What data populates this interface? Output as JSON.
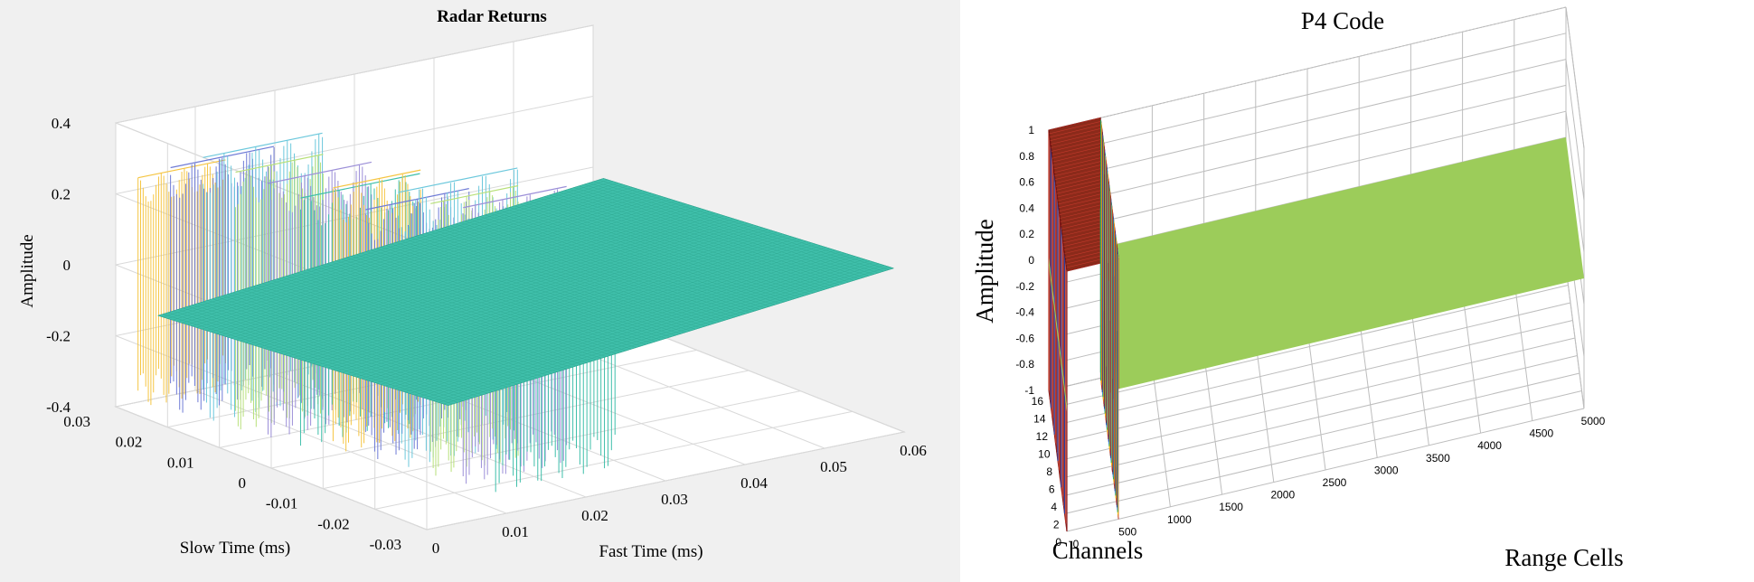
{
  "chart_data": [
    {
      "type": "mesh3d",
      "title": "Radar Returns",
      "xlabel": "Fast Time (ms)",
      "ylabel": "Slow Time (ms)",
      "zlabel": "Amplitude",
      "x_ticks": [
        "0",
        "0.01",
        "0.02",
        "0.03",
        "0.04",
        "0.05",
        "0.06"
      ],
      "y_ticks": [
        "0.03",
        "0.02",
        "0.01",
        "0",
        "-0.01",
        "-0.02",
        "-0.03"
      ],
      "z_ticks": [
        "0.4",
        "0.2",
        "0",
        "-0.2",
        "-0.4"
      ],
      "xlim": [
        0,
        0.06
      ],
      "ylim": [
        -0.03,
        0.03
      ],
      "zlim": [
        -0.4,
        0.4
      ],
      "grid": true,
      "pulse_amplitudes": [
        0.25,
        0.3,
        0.35,
        0.33,
        0.32,
        0.3,
        0.35,
        0.31,
        0.38,
        0.37,
        0.38,
        0.36
      ],
      "flat_plane_value": 0,
      "colors": [
        "#f5c542",
        "#6f7bd6",
        "#6cc8dc",
        "#b8e07a",
        "#9c8fd8",
        "#3fbfaa"
      ],
      "plane_color": "#3fbfaa"
    },
    {
      "type": "line3d",
      "title": "P4 Code",
      "xlabel": "Range Cells",
      "ylabel": "Channels",
      "zlabel": "Amplitude",
      "x_ticks": [
        "0",
        "500",
        "1000",
        "1500",
        "2000",
        "2500",
        "3000",
        "3500",
        "4000",
        "4500",
        "5000"
      ],
      "y_ticks": [
        "16",
        "14",
        "12",
        "10",
        "8",
        "6",
        "4",
        "2",
        "0"
      ],
      "z_ticks": [
        "1",
        "0.8",
        "0.6",
        "0.4",
        "0.2",
        "0",
        "-0.2",
        "-0.4",
        "-0.6",
        "-0.8",
        "-1"
      ],
      "xlim": [
        0,
        5000
      ],
      "ylim": [
        0,
        16
      ],
      "zlim": [
        -1,
        1
      ],
      "grid": true,
      "channels": 16,
      "code_length_cells": 500,
      "flat_plane_value": 0,
      "colors": [
        "#c0392b",
        "#8b1a1a",
        "#2c3e9e",
        "#3a8fd8",
        "#f1c40f",
        "#27ae60",
        "#e67e22"
      ],
      "plane_color": "#9ccc5a"
    }
  ]
}
